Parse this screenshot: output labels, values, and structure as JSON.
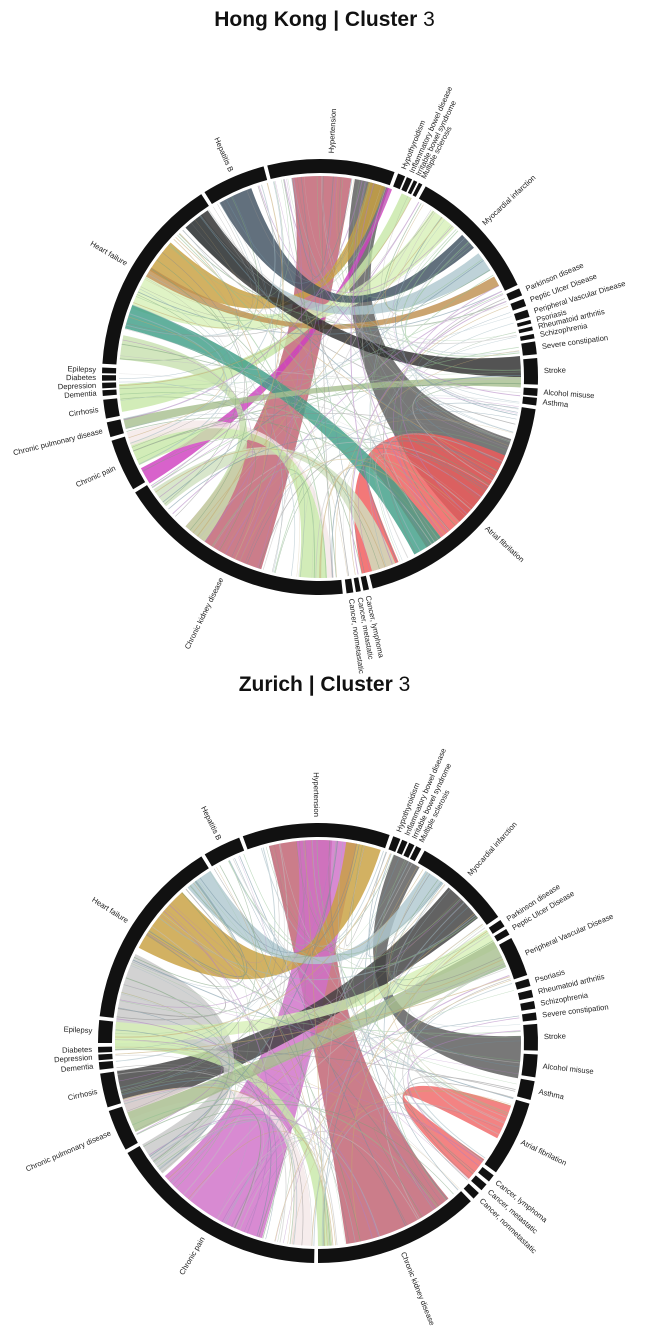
{
  "panels": [
    {
      "id": "hk",
      "title_place": "Hong Kong",
      "title_sep": " | ",
      "title_cluster": "Cluster",
      "title_num": " 3",
      "chart_data": {
        "type": "chord",
        "sectors": [
          {
            "name": "Hypertension",
            "start": -14,
            "end": 20
          },
          {
            "name": "Hypothyroidism",
            "start": 21,
            "end": 23
          },
          {
            "name": "Inflammatory bowel disease",
            "start": 23.5,
            "end": 25
          },
          {
            "name": "Irritable bowel syndrome",
            "start": 25.5,
            "end": 26.5
          },
          {
            "name": "Multiple sclerosis",
            "start": 27,
            "end": 28
          },
          {
            "name": "Myocardial infarction",
            "start": 29,
            "end": 65
          },
          {
            "name": "Parkinson disease",
            "start": 66,
            "end": 68
          },
          {
            "name": "Peptic Ulcer Disease",
            "start": 69,
            "end": 71
          },
          {
            "name": "Peripheral Vascular Disease",
            "start": 72,
            "end": 74
          },
          {
            "name": "Psoriasis",
            "start": 74.8,
            "end": 75.8
          },
          {
            "name": "Rheumatoid arthritis",
            "start": 76.6,
            "end": 77.6
          },
          {
            "name": "Schizophrenia",
            "start": 78.6,
            "end": 79.8
          },
          {
            "name": "Severe constipation",
            "start": 80.6,
            "end": 84
          },
          {
            "name": "Stroke",
            "start": 85,
            "end": 92
          },
          {
            "name": "Alcohol misuse",
            "start": 93,
            "end": 95
          },
          {
            "name": "Asthma",
            "start": 95.5,
            "end": 97.5
          },
          {
            "name": "Atrial fibrilation",
            "start": 98.5,
            "end": 166
          },
          {
            "name": "Cancer, lymphoma",
            "start": 167,
            "end": 168.5
          },
          {
            "name": "Cancer, metastatic",
            "start": 169.2,
            "end": 170.5
          },
          {
            "name": "Cancer, nonmetastatic",
            "start": 171.2,
            "end": 173
          },
          {
            "name": "Chronic kidney disease",
            "start": 174,
            "end": 238
          },
          {
            "name": "Chronic pain",
            "start": 239,
            "end": 253
          },
          {
            "name": "Chronic pulmonary disease",
            "start": 254,
            "end": 258
          },
          {
            "name": "Cirrhosis",
            "start": 259,
            "end": 264
          },
          {
            "name": "Dementia",
            "start": 265,
            "end": 266.5
          },
          {
            "name": "Depression",
            "start": 267,
            "end": 268.5
          },
          {
            "name": "Diabetes",
            "start": 269,
            "end": 270.5
          },
          {
            "name": "Epilepsy",
            "start": 271,
            "end": 272.5
          },
          {
            "name": "Heart failure",
            "start": 273.5,
            "end": 327
          },
          {
            "name": "Hepatitis B",
            "start": 328,
            "end": 345
          }
        ],
        "ribbons": [
          {
            "from": [
              -8,
              9
            ],
            "to": [
              197,
              222
            ],
            "color": "#c06070"
          },
          {
            "from": [
              10,
              20
            ],
            "to": [
              108,
              136
            ],
            "color": "#5a5a5a"
          },
          {
            "from": [
              14,
              19
            ],
            "to": [
              302,
              312
            ],
            "color": "#c8a040"
          },
          {
            "from": [
              19.5,
              21
            ],
            "to": [
              238,
              243
            ],
            "color": "#d040c0"
          },
          {
            "from": [
              24,
              27
            ],
            "to": [
              260,
              268
            ],
            "color": "#c8e8a8"
          },
          {
            "from": [
              34,
              42
            ],
            "to": [
              290,
              300
            ],
            "color": "#d8f0b8"
          },
          {
            "from": [
              45,
              50
            ],
            "to": [
              330,
              340
            ],
            "color": "#405060"
          },
          {
            "from": [
              52,
              58
            ],
            "to": [
              318,
              324
            ],
            "color": "#b0c8d0"
          },
          {
            "from": [
              60,
              63
            ],
            "to": [
              300,
              303
            ],
            "color": "#c09050"
          },
          {
            "from": [
              84,
              90
            ],
            "to": [
              318,
              326
            ],
            "color": "#2d2d2d"
          },
          {
            "from": [
              113,
              148
            ],
            "to": [
              157,
              168
            ],
            "color": "#f05a5a"
          },
          {
            "from": [
              143,
              152
            ],
            "to": [
              284,
              291
            ],
            "color": "#3f9f88"
          },
          {
            "from": [
              158,
              165
            ],
            "to": [
              230,
              236
            ],
            "color": "#d0e0c0"
          },
          {
            "from": [
              178,
              186
            ],
            "to": [
              244,
              251
            ],
            "color": "#c8e8a8"
          },
          {
            "from": [
              176,
              178
            ],
            "to": [
              250,
              254
            ],
            "color": "#f4e8e8"
          },
          {
            "from": [
              215,
              222
            ],
            "to": [
              275,
              282
            ],
            "color": "#c8e0b0"
          },
          {
            "from": [
              255,
              258
            ],
            "to": [
              90,
              93
            ],
            "color": "#a8c090"
          }
        ]
      }
    },
    {
      "id": "zu",
      "title_place": "Zurich",
      "title_sep": " | ",
      "title_cluster": "Cluster",
      "title_num": " 3",
      "chart_data": {
        "type": "chord",
        "sectors": [
          {
            "name": "Hypertension",
            "start": -20,
            "end": 19
          },
          {
            "name": "Hypothyroidism",
            "start": 20,
            "end": 22
          },
          {
            "name": "Inflammatory bowel disease",
            "start": 22.5,
            "end": 24
          },
          {
            "name": "Irritable bowel syndrome",
            "start": 24.5,
            "end": 26
          },
          {
            "name": "Multiple sclerosis",
            "start": 26.5,
            "end": 28
          },
          {
            "name": "Myocardial infarction",
            "start": 29,
            "end": 55
          },
          {
            "name": "Parkinson disease",
            "start": 56,
            "end": 58
          },
          {
            "name": "Peptic Ulcer Disease",
            "start": 58.8,
            "end": 60.5
          },
          {
            "name": "Peripheral Vascular Disease",
            "start": 61.5,
            "end": 72
          },
          {
            "name": "Psoriasis",
            "start": 73,
            "end": 75
          },
          {
            "name": "Rheumatoid arthritis",
            "start": 76,
            "end": 78
          },
          {
            "name": "Schizophrenia",
            "start": 79,
            "end": 81
          },
          {
            "name": "Severe constipation",
            "start": 82,
            "end": 84
          },
          {
            "name": "Stroke",
            "start": 85,
            "end": 92
          },
          {
            "name": "Alcohol misuse",
            "start": 93,
            "end": 99
          },
          {
            "name": "Asthma",
            "start": 100,
            "end": 105
          },
          {
            "name": "Atrial fibrilation",
            "start": 106,
            "end": 126
          },
          {
            "name": "Cancer, lymphoma",
            "start": 127,
            "end": 129
          },
          {
            "name": "Cancer, metastatic",
            "start": 130,
            "end": 132
          },
          {
            "name": "Cancer, nonmetastatic",
            "start": 133,
            "end": 135
          },
          {
            "name": "Chronic kidney disease",
            "start": 136,
            "end": 180
          },
          {
            "name": "Chronic pain",
            "start": 181,
            "end": 240
          },
          {
            "name": "Chronic pulmonary disease",
            "start": 241,
            "end": 252
          },
          {
            "name": "Cirrhosis",
            "start": 253,
            "end": 262
          },
          {
            "name": "Dementia",
            "start": 263,
            "end": 265
          },
          {
            "name": "Depression",
            "start": 265.5,
            "end": 267
          },
          {
            "name": "Diabetes",
            "start": 267.5,
            "end": 269
          },
          {
            "name": "Epilepsy",
            "start": 270,
            "end": 276
          },
          {
            "name": "Heart failure",
            "start": 277,
            "end": 328
          },
          {
            "name": "Hepatitis B",
            "start": 329,
            "end": 339
          }
        ],
        "ribbons": [
          {
            "from": [
              -14,
              4
            ],
            "to": [
              140,
              172
            ],
            "color": "#c06070"
          },
          {
            "from": [
              -6,
              11
            ],
            "to": [
              196,
              229
            ],
            "color": "#d070c8"
          },
          {
            "from": [
              8,
              18
            ],
            "to": [
              298,
              318
            ],
            "color": "#c8a040"
          },
          {
            "from": [
              22,
              30
            ],
            "to": [
              88,
              100
            ],
            "color": "#5a5a5a"
          },
          {
            "from": [
              40,
              52
            ],
            "to": [
              250,
              262
            ],
            "color": "#404040"
          },
          {
            "from": [
              32,
              38
            ],
            "to": [
              320,
              328
            ],
            "color": "#b0c8d0"
          },
          {
            "from": [
              108,
              118
            ],
            "to": [
              125,
              132
            ],
            "color": "#f06868"
          },
          {
            "from": [
              176,
              180
            ],
            "to": [
              268,
              276
            ],
            "color": "#c8e8a8"
          },
          {
            "from": [
              182,
              188
            ],
            "to": [
              248,
              254
            ],
            "color": "#f4e8e8"
          },
          {
            "from": [
              230,
              240
            ],
            "to": [
              272,
              296
            ],
            "color": "#c8c8c8"
          },
          {
            "from": [
              270,
              276
            ],
            "to": [
              56,
              62
            ],
            "color": "#d8f0b8"
          },
          {
            "from": [
              244,
              250
            ],
            "to": [
              60,
              68
            ],
            "color": "#a8c090"
          }
        ]
      }
    }
  ],
  "colors": {
    "sector": "#111111",
    "thin_chord": "#8a8a8a"
  }
}
